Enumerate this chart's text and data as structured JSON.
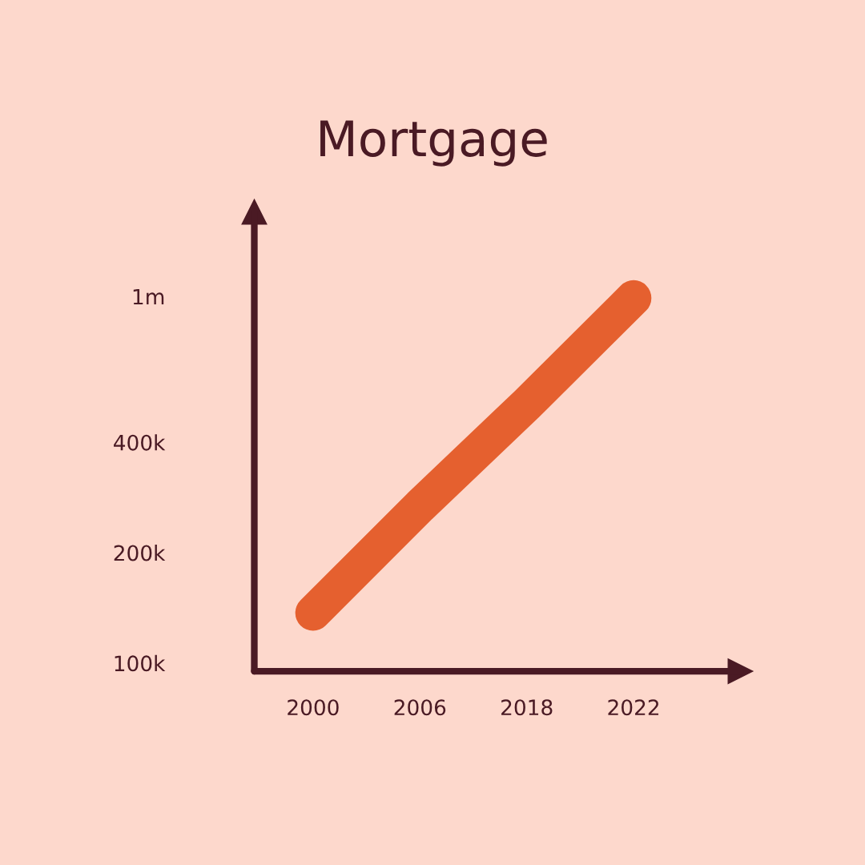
{
  "chart_data": {
    "type": "line",
    "title": "Mortgage",
    "categories": [
      "2000",
      "2006",
      "2018",
      "2022"
    ],
    "series": [
      {
        "color": "#e5602f",
        "values": [
          137000,
          268000,
          508000,
          990000
        ]
      }
    ],
    "log": "y",
    "ylim": [
      95000,
      1700000
    ],
    "yticks": [
      {
        "value": 100000,
        "label": "100k"
      },
      {
        "value": 200000,
        "label": "200k"
      },
      {
        "value": 400000,
        "label": "400k"
      },
      {
        "value": 1000000,
        "label": "1m"
      }
    ],
    "grid": false,
    "legend": false,
    "marker": "none",
    "line_style": "solid"
  }
}
